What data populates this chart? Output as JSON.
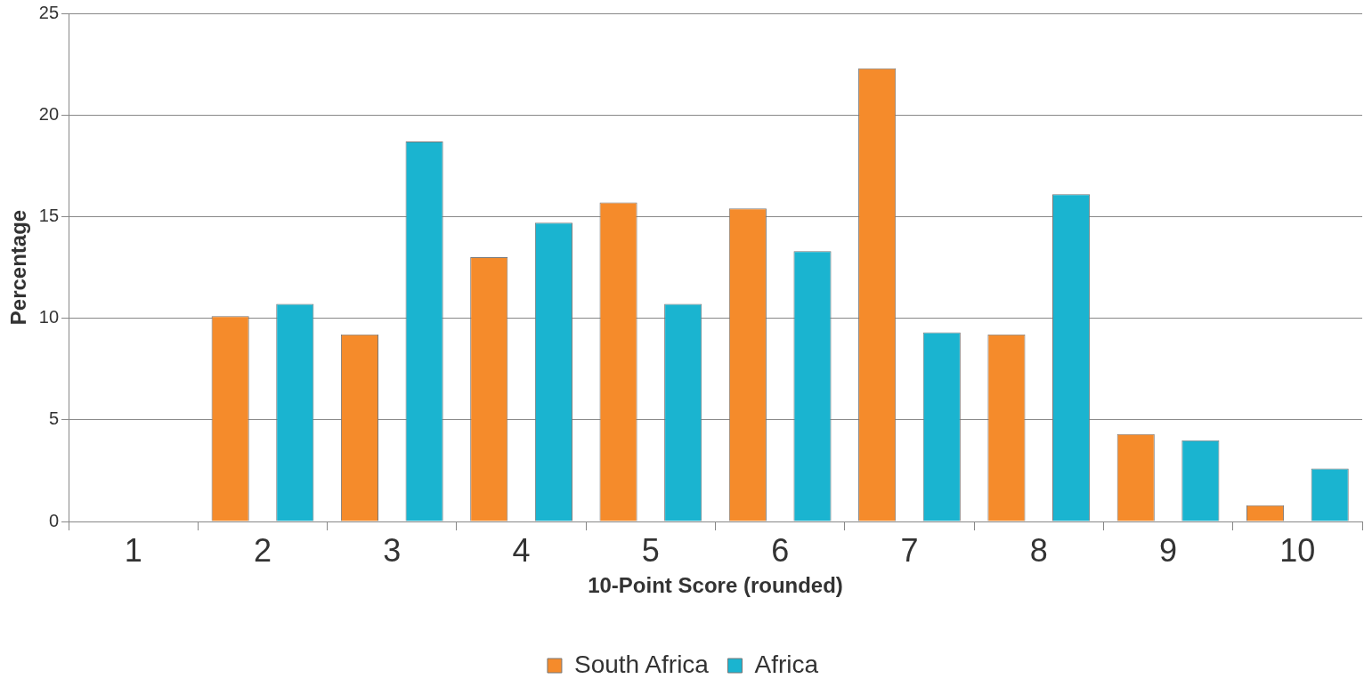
{
  "chart_data": {
    "type": "bar",
    "xlabel": "10-Point Score (rounded)",
    "ylabel": "Percentage",
    "categories": [
      "1",
      "2",
      "3",
      "4",
      "5",
      "6",
      "7",
      "8",
      "9",
      "10"
    ],
    "series": [
      {
        "name": "South Africa",
        "color": "#f58b2b",
        "values": [
          0,
          10.1,
          9.2,
          13.0,
          15.7,
          15.4,
          22.3,
          9.2,
          4.3,
          0.8
        ]
      },
      {
        "name": "Africa",
        "color": "#1ab4d0",
        "values": [
          0,
          10.7,
          18.7,
          14.7,
          10.7,
          13.3,
          9.3,
          16.1,
          4.0,
          2.6
        ]
      }
    ],
    "ylim": [
      0,
      25
    ],
    "yticks": [
      0,
      5,
      10,
      15,
      20,
      25
    ],
    "grid": "y",
    "legend": "bottom"
  }
}
